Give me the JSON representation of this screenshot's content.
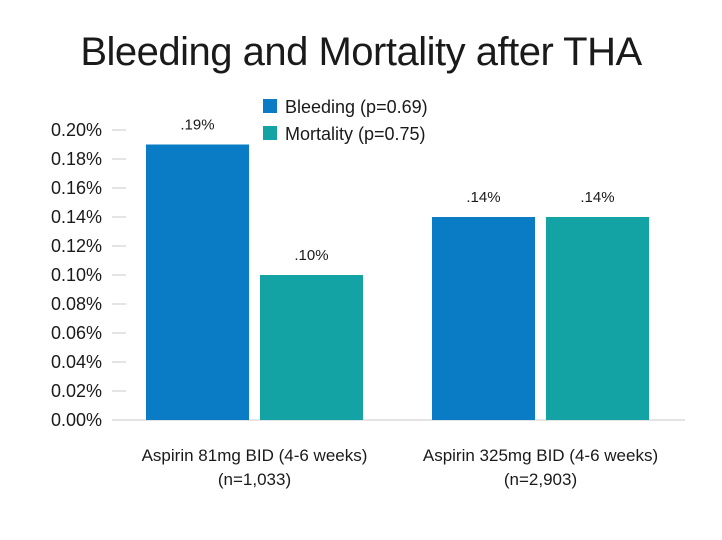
{
  "title": "Bleeding and Mortality after THA",
  "colors": {
    "bleeding": "#0a7cc6",
    "mortality": "#13a3a4"
  },
  "chart_data": {
    "type": "bar",
    "title": "Bleeding and Mortality after THA",
    "categories": [
      [
        "Aspirin 81mg BID (4-6 weeks)",
        "(n=1,033)"
      ],
      [
        "Aspirin 325mg BID (4-6 weeks)",
        "(n=2,903)"
      ]
    ],
    "series": [
      {
        "name": "Bleeding (p=0.69)",
        "values": [
          0.19,
          0.14
        ],
        "labels": [
          ".19%",
          ".14%"
        ]
      },
      {
        "name": "Mortality (p=0.75)",
        "values": [
          0.1,
          0.14
        ],
        "labels": [
          ".10%",
          ".14%"
        ]
      }
    ],
    "yticks": [
      "0.00%",
      "0.02%",
      "0.04%",
      "0.06%",
      "0.08%",
      "0.10%",
      "0.12%",
      "0.14%",
      "0.16%",
      "0.18%",
      "0.20%"
    ],
    "ylim": [
      0,
      0.2
    ],
    "legend": "top-center",
    "grid": false
  }
}
